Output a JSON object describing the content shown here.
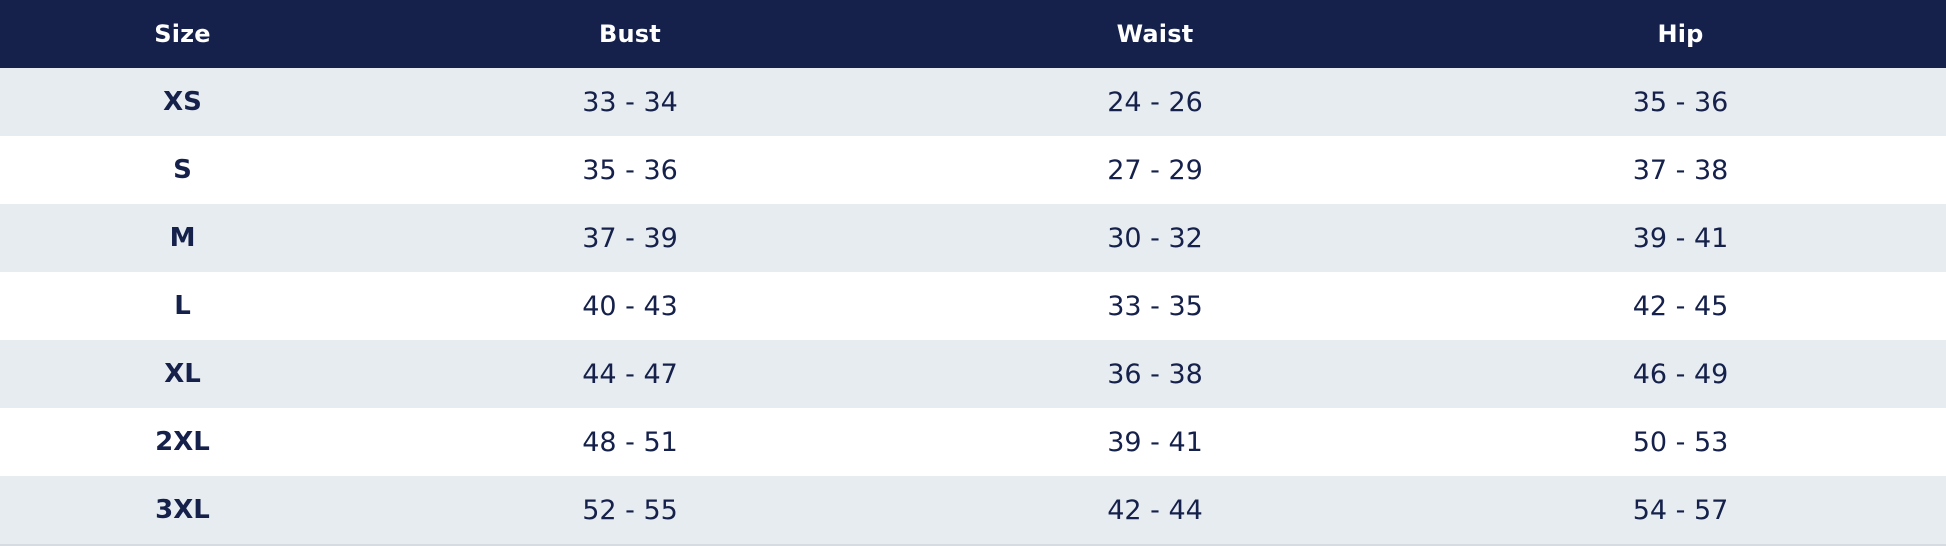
{
  "size_chart": {
    "headers": {
      "size": "Size",
      "bust": "Bust",
      "waist": "Waist",
      "hip": "Hip"
    },
    "rows": [
      {
        "size": "XS",
        "bust": "33 - 34",
        "waist": "24 - 26",
        "hip": "35 - 36"
      },
      {
        "size": "S",
        "bust": "35 - 36",
        "waist": "27 - 29",
        "hip": "37 - 38"
      },
      {
        "size": "M",
        "bust": "37 - 39",
        "waist": "30 - 32",
        "hip": "39 - 41"
      },
      {
        "size": "L",
        "bust": "40 - 43",
        "waist": "33 - 35",
        "hip": "42 - 45"
      },
      {
        "size": "XL",
        "bust": "44 - 47",
        "waist": "36 - 38",
        "hip": "46 - 49"
      },
      {
        "size": "2XL",
        "bust": "48 - 51",
        "waist": "39 - 41",
        "hip": "50 - 53"
      },
      {
        "size": "3XL",
        "bust": "52 - 55",
        "waist": "42 - 44",
        "hip": "54 - 57"
      }
    ],
    "colors": {
      "header_background": "#15214b",
      "header_text": "#ffffff",
      "body_text": "#15214b",
      "shaded_row": "#e7ecf0",
      "plain_row": "#ffffff"
    }
  }
}
